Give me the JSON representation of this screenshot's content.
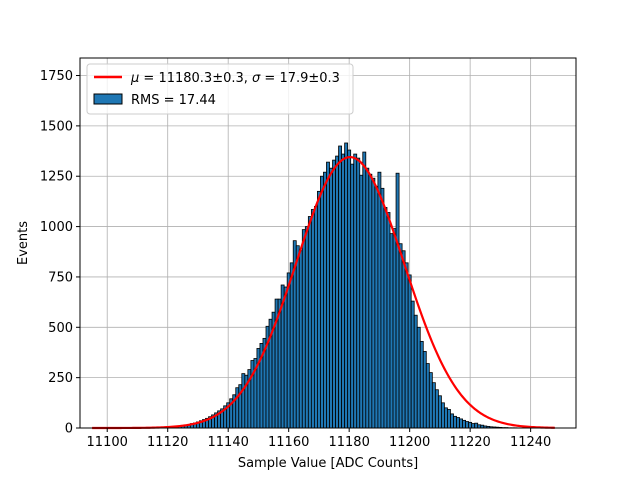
{
  "chart_data": {
    "type": "bar",
    "xlabel": "Sample Value [ADC Counts]",
    "ylabel": "Events",
    "xlim": [
      11091,
      11255
    ],
    "ylim": [
      0,
      1837
    ],
    "grid": true,
    "legend_placement": "upper-left",
    "colors": {
      "bar_fill": "#1f77b4",
      "bar_edge": "#000000",
      "fit_line": "#ff0000",
      "grid": "#b0b0b0"
    },
    "x_ticks": [
      11100,
      11120,
      11140,
      11160,
      11180,
      11200,
      11220,
      11240
    ],
    "y_ticks": [
      0,
      250,
      500,
      750,
      1000,
      1250,
      1500,
      1750
    ],
    "bin_width": 1,
    "bins": [
      [
        11121,
        5
      ],
      [
        11122,
        6
      ],
      [
        11123,
        8
      ],
      [
        11124,
        10
      ],
      [
        11125,
        12
      ],
      [
        11126,
        15
      ],
      [
        11127,
        18
      ],
      [
        11128,
        22
      ],
      [
        11129,
        25
      ],
      [
        11130,
        30
      ],
      [
        11131,
        36
      ],
      [
        11132,
        42
      ],
      [
        11133,
        48
      ],
      [
        11134,
        56
      ],
      [
        11135,
        65
      ],
      [
        11136,
        75
      ],
      [
        11137,
        85
      ],
      [
        11138,
        95
      ],
      [
        11139,
        110
      ],
      [
        11140,
        125
      ],
      [
        11141,
        145
      ],
      [
        11142,
        165
      ],
      [
        11143,
        200
      ],
      [
        11144,
        215
      ],
      [
        11145,
        270
      ],
      [
        11146,
        262
      ],
      [
        11147,
        290
      ],
      [
        11148,
        335
      ],
      [
        11149,
        345
      ],
      [
        11150,
        395
      ],
      [
        11151,
        420
      ],
      [
        11152,
        445
      ],
      [
        11153,
        505
      ],
      [
        11154,
        540
      ],
      [
        11155,
        575
      ],
      [
        11156,
        640
      ],
      [
        11157,
        640
      ],
      [
        11158,
        710
      ],
      [
        11159,
        700
      ],
      [
        11160,
        770
      ],
      [
        11161,
        820
      ],
      [
        11162,
        930
      ],
      [
        11163,
        905
      ],
      [
        11164,
        880
      ],
      [
        11165,
        985
      ],
      [
        11166,
        1000
      ],
      [
        11167,
        1050
      ],
      [
        11168,
        1085
      ],
      [
        11169,
        1100
      ],
      [
        11170,
        1175
      ],
      [
        11171,
        1250
      ],
      [
        11172,
        1270
      ],
      [
        11173,
        1320
      ],
      [
        11174,
        1290
      ],
      [
        11175,
        1330
      ],
      [
        11176,
        1350
      ],
      [
        11177,
        1400
      ],
      [
        11178,
        1360
      ],
      [
        11179,
        1415
      ],
      [
        11180,
        1380
      ],
      [
        11181,
        1310
      ],
      [
        11182,
        1360
      ],
      [
        11183,
        1340
      ],
      [
        11184,
        1255
      ],
      [
        11185,
        1370
      ],
      [
        11186,
        1290
      ],
      [
        11187,
        1260
      ],
      [
        11188,
        1240
      ],
      [
        11189,
        1200
      ],
      [
        11190,
        1270
      ],
      [
        11191,
        1190
      ],
      [
        11192,
        1095
      ],
      [
        11193,
        1070
      ],
      [
        11194,
        965
      ],
      [
        11195,
        990
      ],
      [
        11196,
        1265
      ],
      [
        11197,
        915
      ],
      [
        11198,
        880
      ],
      [
        11199,
        820
      ],
      [
        11200,
        760
      ],
      [
        11201,
        630
      ],
      [
        11202,
        560
      ],
      [
        11203,
        500
      ],
      [
        11204,
        430
      ],
      [
        11205,
        380
      ],
      [
        11206,
        320
      ],
      [
        11207,
        275
      ],
      [
        11208,
        225
      ],
      [
        11209,
        190
      ],
      [
        11210,
        160
      ],
      [
        11211,
        125
      ],
      [
        11212,
        100
      ],
      [
        11213,
        92
      ],
      [
        11214,
        70
      ],
      [
        11215,
        58
      ],
      [
        11216,
        52
      ],
      [
        11217,
        45
      ],
      [
        11218,
        38
      ],
      [
        11219,
        32
      ],
      [
        11220,
        28
      ],
      [
        11221,
        22
      ],
      [
        11222,
        24
      ],
      [
        11223,
        16
      ],
      [
        11224,
        14
      ],
      [
        11225,
        10
      ],
      [
        11226,
        8
      ],
      [
        11227,
        6
      ],
      [
        11228,
        5
      ],
      [
        11229,
        4
      ],
      [
        11230,
        3
      ],
      [
        11231,
        2
      ],
      [
        11232,
        2
      ],
      [
        11233,
        1
      ],
      [
        11234,
        1
      ],
      [
        11235,
        1
      ]
    ],
    "fit": {
      "function": "gaussian",
      "mu": 11180.3,
      "sigma": 17.9,
      "amplitude": 1345,
      "x_range": [
        11095,
        11248
      ]
    },
    "legend": [
      {
        "kind": "line",
        "label_pre": "μ",
        "label_mid": " = 11180.3±0.3, ",
        "label_sym": "σ",
        "label_post": " = 17.9±0.3"
      },
      {
        "kind": "patch",
        "label": "RMS = 17.44"
      }
    ]
  }
}
